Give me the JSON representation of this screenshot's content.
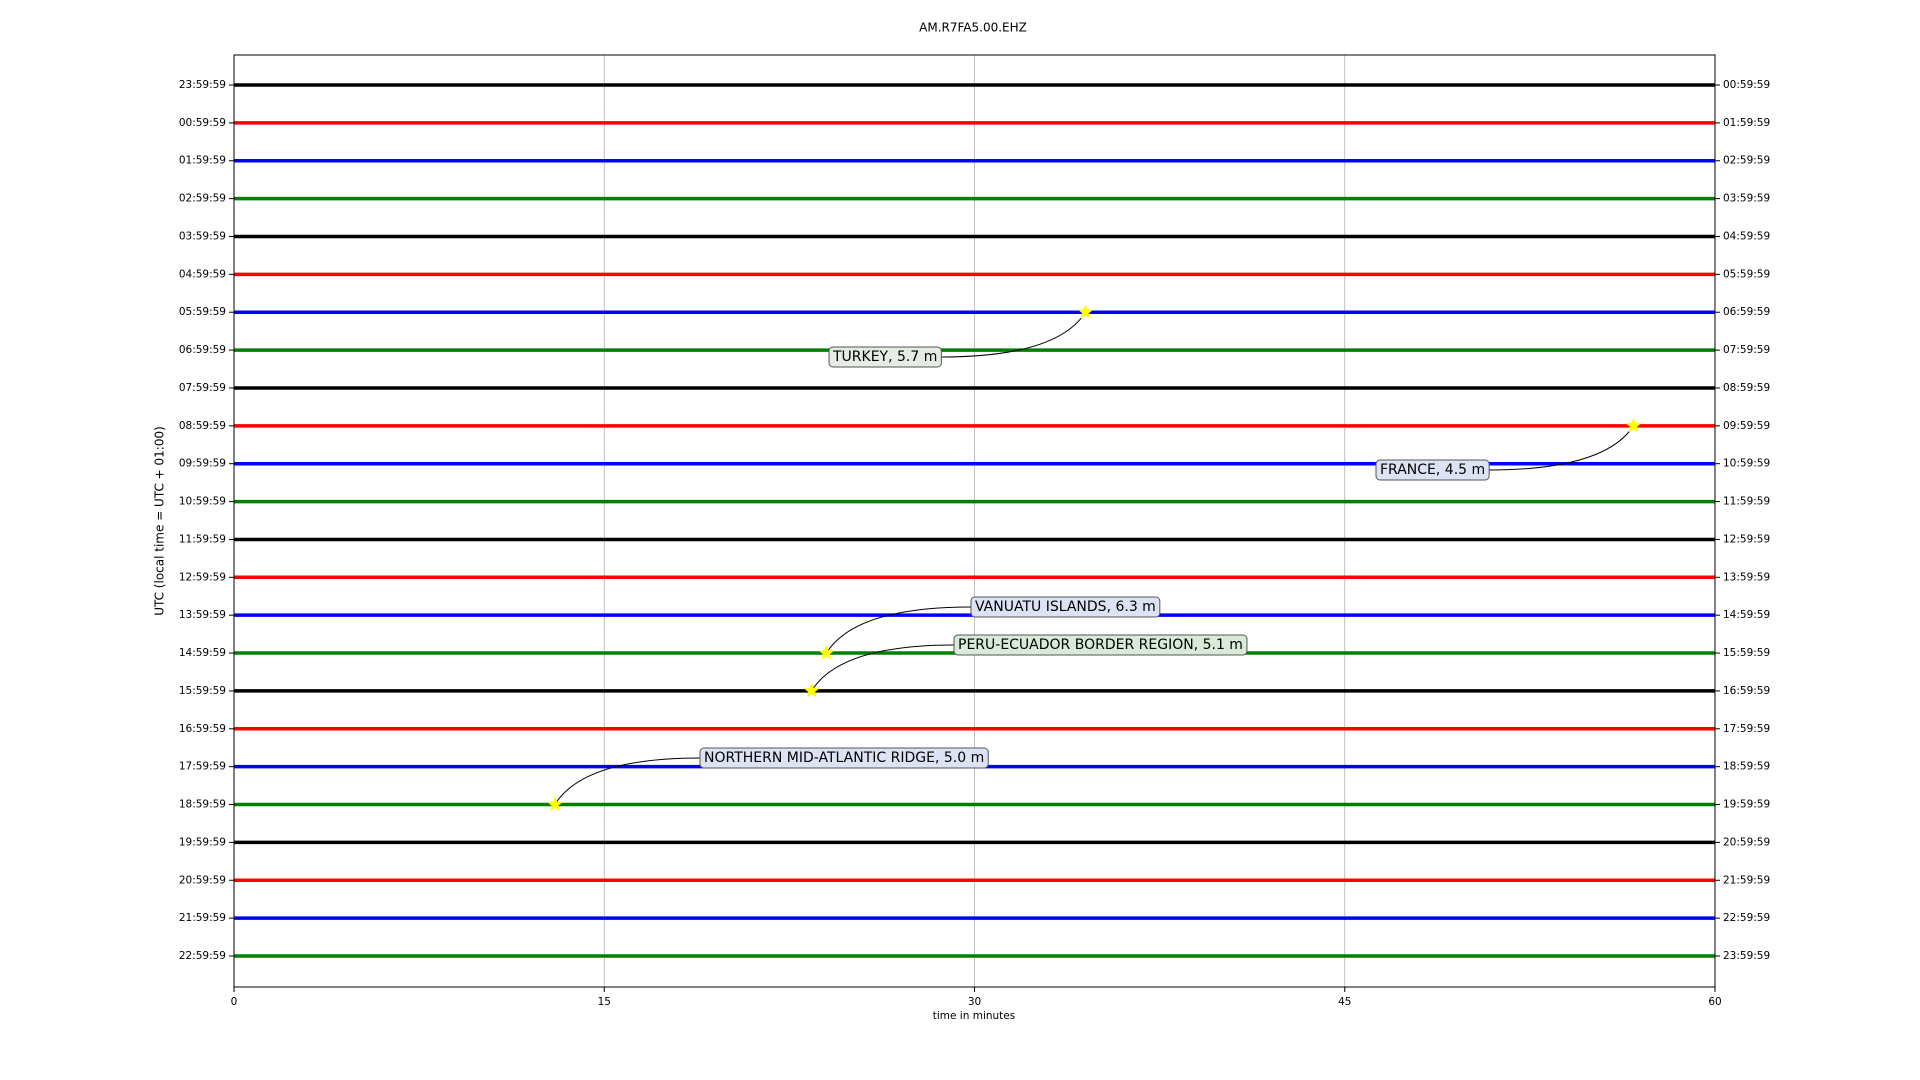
{
  "chart_data": {
    "type": "dayplot",
    "title": "AM.R7FA5.00.EHZ",
    "xlabel": "time in minutes",
    "ylabel": "UTC (local time = UTC + 01:00)",
    "xlim": [
      0,
      60
    ],
    "xticks": [
      0,
      15,
      30,
      45,
      60
    ],
    "grid": true,
    "rows": [
      {
        "left": "23:59:59",
        "right": "00:59:59",
        "color": "#000000"
      },
      {
        "left": "00:59:59",
        "right": "01:59:59",
        "color": "#ff0000"
      },
      {
        "left": "01:59:59",
        "right": "02:59:59",
        "color": "#0000ff"
      },
      {
        "left": "02:59:59",
        "right": "03:59:59",
        "color": "#008000"
      },
      {
        "left": "03:59:59",
        "right": "04:59:59",
        "color": "#000000"
      },
      {
        "left": "04:59:59",
        "right": "05:59:59",
        "color": "#ff0000"
      },
      {
        "left": "05:59:59",
        "right": "06:59:59",
        "color": "#0000ff"
      },
      {
        "left": "06:59:59",
        "right": "07:59:59",
        "color": "#008000"
      },
      {
        "left": "07:59:59",
        "right": "08:59:59",
        "color": "#000000"
      },
      {
        "left": "08:59:59",
        "right": "09:59:59",
        "color": "#ff0000"
      },
      {
        "left": "09:59:59",
        "right": "10:59:59",
        "color": "#0000ff"
      },
      {
        "left": "10:59:59",
        "right": "11:59:59",
        "color": "#008000"
      },
      {
        "left": "11:59:59",
        "right": "12:59:59",
        "color": "#000000"
      },
      {
        "left": "12:59:59",
        "right": "13:59:59",
        "color": "#ff0000"
      },
      {
        "left": "13:59:59",
        "right": "14:59:59",
        "color": "#0000ff"
      },
      {
        "left": "14:59:59",
        "right": "15:59:59",
        "color": "#008000"
      },
      {
        "left": "15:59:59",
        "right": "16:59:59",
        "color": "#000000"
      },
      {
        "left": "16:59:59",
        "right": "17:59:59",
        "color": "#ff0000"
      },
      {
        "left": "17:59:59",
        "right": "18:59:59",
        "color": "#0000ff"
      },
      {
        "left": "18:59:59",
        "right": "19:59:59",
        "color": "#008000"
      },
      {
        "left": "19:59:59",
        "right": "20:59:59",
        "color": "#000000"
      },
      {
        "left": "20:59:59",
        "right": "21:59:59",
        "color": "#ff0000"
      },
      {
        "left": "21:59:59",
        "right": "22:59:59",
        "color": "#0000ff"
      },
      {
        "left": "22:59:59",
        "right": "23:59:59",
        "color": "#008000"
      }
    ],
    "events": [
      {
        "label": "TURKEY, 5.7 m",
        "minute": 34.5,
        "row": 6
      },
      {
        "label": "FRANCE, 4.5 m",
        "minute": 56.7,
        "row": 9
      },
      {
        "label": "VANUATU ISLANDS, 6.3 m",
        "minute": 24.0,
        "row": 15
      },
      {
        "label": "PERU-ECUADOR BORDER REGION, 5.1 m",
        "minute": 23.4,
        "row": 16
      },
      {
        "label": "NORTHERN MID-ATLANTIC RIDGE, 5.0 m",
        "minute": 13.0,
        "row": 19
      }
    ],
    "marker_color": "#ffff00"
  }
}
